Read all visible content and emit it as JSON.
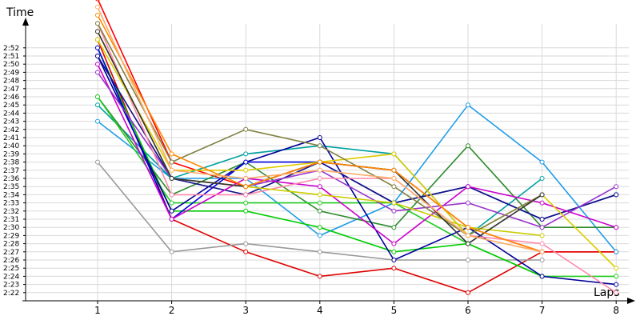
{
  "chart_data": {
    "type": "line",
    "title": "",
    "xlabel": "Laps",
    "ylabel": "Time",
    "x": [
      "1",
      "2",
      "3",
      "4",
      "5",
      "6",
      "7",
      "8"
    ],
    "y_unit": "m:ss",
    "ylim": [
      "2:21",
      "2:53"
    ],
    "y_ticks": [
      "2:22",
      "2:23",
      "2:24",
      "2:25",
      "2:26",
      "2:27",
      "2:28",
      "2:29",
      "2:30",
      "2:31",
      "2:32",
      "2:33",
      "2:34",
      "2:35",
      "2:36",
      "2:37",
      "2:38",
      "2:39",
      "2:40",
      "2:41",
      "2:42",
      "2:43",
      "2:44",
      "2:45",
      "2:46",
      "2:47",
      "2:48",
      "2:49",
      "2:50",
      "2:51",
      "2:52"
    ],
    "grid": true,
    "legend": "none",
    "series": [
      {
        "color": "#ff0000",
        "values": [
          "2:58",
          "2:38",
          "2:35",
          "2:38",
          "2:37",
          "2:30",
          "2:27",
          "2:27"
        ]
      },
      {
        "color": "#e00000",
        "values": [
          "2:53",
          "2:31",
          "2:27",
          "2:24",
          "2:25",
          "2:22",
          "2:27",
          "2:27"
        ]
      },
      {
        "color": "#999999",
        "values": [
          "2:38",
          "2:27",
          "2:28",
          "2:27",
          "2:26",
          "2:26",
          "2:26",
          null
        ]
      },
      {
        "color": "#1e9ce6",
        "values": [
          "2:43",
          "2:36",
          "2:36",
          "2:29",
          "2:33",
          "2:45",
          "2:38",
          "2:27"
        ]
      },
      {
        "color": "#00a0a0",
        "values": [
          "2:45",
          "2:36",
          "2:39",
          "2:40",
          "2:39",
          "2:29",
          "2:36",
          null
        ]
      },
      {
        "color": "#2e8b2e",
        "values": [
          "2:46",
          "2:34",
          "2:38",
          "2:32",
          "2:30",
          "2:40",
          "2:30",
          "2:30"
        ]
      },
      {
        "color": "#22cc22",
        "values": [
          "2:46",
          "2:33",
          "2:33",
          "2:33",
          "2:33",
          "2:28",
          "2:24",
          "2:24"
        ]
      },
      {
        "color": "#00cc00",
        "values": [
          "2:52",
          "2:32",
          "2:32",
          "2:30",
          "2:27",
          "2:28",
          "2:24",
          null
        ]
      },
      {
        "color": "#000099",
        "values": [
          "2:51",
          "2:32",
          "2:38",
          "2:41",
          "2:26",
          "2:30",
          "2:24",
          "2:23"
        ]
      },
      {
        "color": "#0000dd",
        "values": [
          "2:52",
          "2:31",
          "2:38",
          "2:38",
          "2:33",
          "2:35",
          "2:31",
          "2:34"
        ]
      },
      {
        "color": "#111188",
        "values": [
          "2:51",
          "2:36",
          "2:34",
          "2:38",
          "2:33",
          "2:35",
          "2:31",
          "2:34"
        ]
      },
      {
        "color": "#cc00cc",
        "values": [
          "2:50",
          "2:31",
          "2:36",
          "2:35",
          "2:28",
          "2:35",
          "2:33",
          "2:30"
        ]
      },
      {
        "color": "#9933cc",
        "values": [
          "2:49",
          "2:36",
          "2:35",
          "2:37",
          "2:32",
          "2:33",
          "2:30",
          "2:35"
        ]
      },
      {
        "color": "#ff88aa",
        "values": [
          "2:55",
          "2:34",
          "2:34",
          "2:36",
          "2:36",
          "2:29",
          "2:28",
          "2:22"
        ]
      },
      {
        "color": "#ddcc00",
        "values": [
          "2:53",
          "2:37",
          "2:37",
          "2:38",
          "2:39",
          "2:29",
          "2:34",
          "2:25"
        ]
      },
      {
        "color": "#cccc00",
        "values": [
          "2:54",
          "2:36",
          "2:35",
          "2:34",
          "2:33",
          "2:30",
          "2:29",
          null
        ]
      },
      {
        "color": "#808040",
        "values": [
          "2:55",
          "2:38",
          "2:42",
          "2:40",
          "2:35",
          "2:29",
          "2:34",
          null
        ]
      },
      {
        "color": "#333333",
        "values": [
          "2:54",
          "2:36",
          "2:35",
          "2:38",
          "2:37",
          "2:28",
          "2:34",
          null
        ]
      },
      {
        "color": "#ff8800",
        "values": [
          "2:56",
          "2:39",
          "2:35",
          "2:38",
          "2:37",
          "2:30",
          "2:27",
          null
        ]
      },
      {
        "color": "#ffaa66",
        "values": [
          "2:57",
          "2:37",
          "2:36",
          "2:37",
          "2:36",
          "2:29",
          "2:27",
          null
        ]
      }
    ]
  }
}
